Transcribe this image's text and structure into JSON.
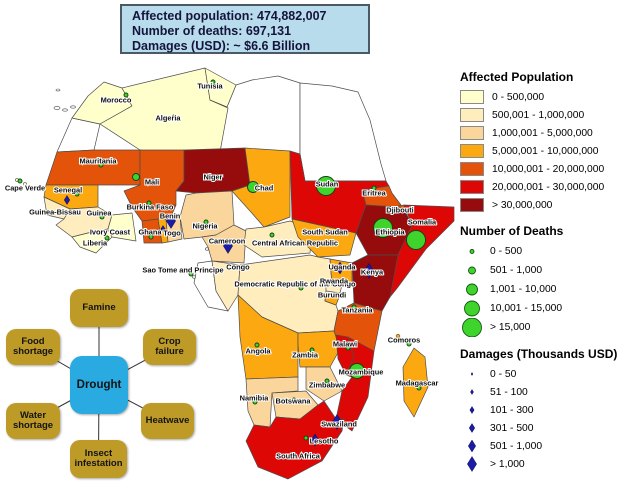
{
  "info_box": {
    "line1": "Affected population: 474,882,007",
    "line2": "Number of deaths: 697,131",
    "line3": "Damages  (USD): ~ $6.6 Billion"
  },
  "legend": {
    "affected": {
      "title": "Affected Population",
      "classes": [
        {
          "label": "0 - 500,000",
          "color": "#FFFFCC"
        },
        {
          "label": "500,001 - 1,000,000",
          "color": "#FFEDBE"
        },
        {
          "label": "1,000,001 - 5,000,000",
          "color": "#FBD69C"
        },
        {
          "label": "5,000,001 - 10,000,000",
          "color": "#FCA811"
        },
        {
          "label": "10,000,001 - 20,000,000",
          "color": "#E35309"
        },
        {
          "label": "20,000,001 - 30,000,000",
          "color": "#DD0806"
        },
        {
          "label": "> 30,000,000",
          "color": "#960B0B"
        }
      ]
    },
    "deaths": {
      "title": "Number of Deaths",
      "symbol_color": "#3FD42C",
      "classes": [
        {
          "label": "0 - 500"
        },
        {
          "label": "501 - 1,000"
        },
        {
          "label": "1,001 - 10,000"
        },
        {
          "label": "10,001 - 15,000"
        },
        {
          "label": "> 15,000"
        }
      ]
    },
    "damages": {
      "title": "Damages (Thousands USD)",
      "symbol_color": "#1B1BA8",
      "classes": [
        {
          "label": "0 - 50"
        },
        {
          "label": "51 - 100"
        },
        {
          "label": "101 - 300"
        },
        {
          "label": "301 - 500"
        },
        {
          "label": "501 - 1,000"
        },
        {
          "label": "> 1,000"
        }
      ]
    }
  },
  "diagram": {
    "center_label": "Drought",
    "center_color": "#29ABE2",
    "node_color": "#BE9A27",
    "nodes": [
      {
        "id": "famine",
        "label": "Famine"
      },
      {
        "id": "food_shortage",
        "label": "Food shortage"
      },
      {
        "id": "crop_failure",
        "label": "Crop failure"
      },
      {
        "id": "water_shortage",
        "label": "Water shortage"
      },
      {
        "id": "heatwave",
        "label": "Heatwave"
      },
      {
        "id": "insect_infestation",
        "label": "Insect infestation"
      }
    ]
  },
  "map": {
    "no_data_color": "#FFFFFF",
    "border_color": "#4D4D4D",
    "countries": [
      {
        "id": "western_sahara",
        "name": "",
        "pop": -1
      },
      {
        "id": "libya",
        "name": "",
        "pop": -1
      },
      {
        "id": "egypt",
        "name": "",
        "pop": -1
      },
      {
        "id": "gabon",
        "name": "",
        "pop": -1
      },
      {
        "id": "morocco",
        "name": "Morocco",
        "pop": 0,
        "deaths": 0
      },
      {
        "id": "algeria",
        "name": "Algeria",
        "pop": 0,
        "deaths": 0
      },
      {
        "id": "tunisia",
        "name": "Tunisia",
        "pop": 0,
        "deaths": 0
      },
      {
        "id": "mauritania",
        "name": "Mauritania",
        "pop": 4,
        "deaths": 0
      },
      {
        "id": "mali",
        "name": "Mali",
        "pop": 4,
        "deaths": 1
      },
      {
        "id": "niger",
        "name": "Niger",
        "pop": 6,
        "deaths": 0
      },
      {
        "id": "chad",
        "name": "Chad",
        "pop": 3,
        "deaths": 2
      },
      {
        "id": "sudan",
        "name": "Sudan",
        "pop": 5,
        "deaths": 4
      },
      {
        "id": "eritrea",
        "name": "Eritrea",
        "pop": 4,
        "deaths": 0
      },
      {
        "id": "djibouti",
        "name": "Djibouti",
        "pop": 4
      },
      {
        "id": "ethiopia",
        "name": "Ethiopia",
        "pop": 6,
        "deaths": 4
      },
      {
        "id": "somalia",
        "name": "Somalia",
        "pop": 5,
        "deaths": 4
      },
      {
        "id": "senegal",
        "name": "Senegal",
        "pop": 3,
        "deaths": 0,
        "dmg": 3
      },
      {
        "id": "cape_verde",
        "name": "Cape Verde",
        "pop": 0,
        "deaths": 0
      },
      {
        "id": "guinea_bissau",
        "name": "Guinea-Bissau",
        "pop": 1
      },
      {
        "id": "guinea",
        "name": "Guinea",
        "pop": 1,
        "deaths": 0
      },
      {
        "id": "liberia",
        "name": "Liberia",
        "pop": 0
      },
      {
        "id": "ivory_coast",
        "name": "Ivory Coast",
        "pop": 0,
        "deaths": 0
      },
      {
        "id": "burkina_faso",
        "name": "Burkina Faso",
        "pop": 4,
        "deaths": 0
      },
      {
        "id": "ghana",
        "name": "Ghana",
        "pop": 4,
        "deaths": 0
      },
      {
        "id": "togo",
        "name": "Togo",
        "pop": 3,
        "dmg": 2
      },
      {
        "id": "benin",
        "name": "Benin",
        "pop": 2,
        "dmg": 5
      },
      {
        "id": "nigeria",
        "name": "Nigeria",
        "pop": 2,
        "deaths": 0
      },
      {
        "id": "cameroon",
        "name": "Cameroon",
        "pop": 2,
        "dmg": 5
      },
      {
        "id": "car",
        "name": "Central African Republic",
        "pop": 1,
        "deaths": 0
      },
      {
        "id": "south_sudan",
        "name": "South Sudan",
        "pop": 3,
        "deaths": 0
      },
      {
        "id": "sao_tome",
        "name": "Sao Tome and Principe",
        "pop": -1,
        "deaths": 0
      },
      {
        "id": "congo",
        "name": "Congo",
        "pop": 1
      },
      {
        "id": "drc",
        "name": "Democratic Republic of the Congo",
        "pop": 1,
        "deaths": 0
      },
      {
        "id": "uganda",
        "name": "Uganda",
        "pop": 3,
        "dmg": 4
      },
      {
        "id": "rwanda",
        "name": "Rwanda",
        "pop": 1
      },
      {
        "id": "burundi",
        "name": "Burundi",
        "pop": 3
      },
      {
        "id": "kenya",
        "name": "Kenya",
        "pop": 6,
        "dmg": 5
      },
      {
        "id": "tanzania",
        "name": "Tanzania",
        "pop": 4,
        "deaths": 0
      },
      {
        "id": "angola",
        "name": "Angola",
        "pop": 3,
        "deaths": 0
      },
      {
        "id": "zambia",
        "name": "Zambia",
        "pop": 3,
        "deaths": 0
      },
      {
        "id": "malawi",
        "name": "Malawi",
        "pop": 5,
        "deaths": 0
      },
      {
        "id": "mozambique",
        "name": "Mozambique",
        "pop": 5,
        "deaths": 3
      },
      {
        "id": "zimbabwe",
        "name": "Zimbabwe",
        "pop": 2,
        "deaths": 0
      },
      {
        "id": "madagascar",
        "name": "Madagascar",
        "pop": 3,
        "deaths": 0
      },
      {
        "id": "comoros",
        "name": "Comoros",
        "pop": 3,
        "deaths": 0
      },
      {
        "id": "namibia",
        "name": "Namibia",
        "pop": 2,
        "deaths": 0
      },
      {
        "id": "botswana",
        "name": "Botswana",
        "pop": 2,
        "deaths": 0
      },
      {
        "id": "swaziland",
        "name": "Swaziland",
        "pop": 5,
        "dmg": 5
      },
      {
        "id": "lesotho",
        "name": "Lesotho",
        "pop": -1,
        "deaths": 0,
        "dmg": 4
      },
      {
        "id": "south_africa",
        "name": "South Africa",
        "pop": 5
      }
    ]
  }
}
